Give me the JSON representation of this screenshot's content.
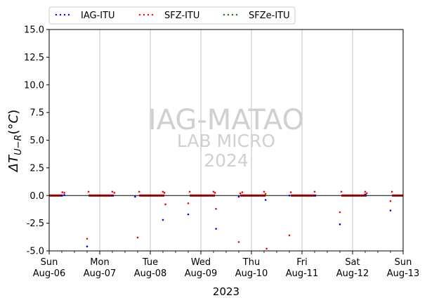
{
  "chart_data": {
    "type": "scatter",
    "xlabel": "2023",
    "ylabel": "ΔT_{U-R}(°C)",
    "ylim": [
      -5.0,
      15.0
    ],
    "yticks": [
      "-5.0",
      "-2.5",
      "0.0",
      "2.5",
      "5.0",
      "7.5",
      "10.0",
      "12.5",
      "15.0"
    ],
    "ytick_values": [
      -5.0,
      -2.5,
      0.0,
      2.5,
      5.0,
      7.5,
      10.0,
      12.5,
      15.0
    ],
    "xlim": [
      0,
      7
    ],
    "xtick_labels": [
      {
        "day": "Sun",
        "date": "Aug-06"
      },
      {
        "day": "Mon",
        "date": "Aug-07"
      },
      {
        "day": "Tue",
        "date": "Aug-08"
      },
      {
        "day": "Wed",
        "date": "Aug-09"
      },
      {
        "day": "Thu",
        "date": "Aug-10"
      },
      {
        "day": "Fri",
        "date": "Aug-11"
      },
      {
        "day": "Sat",
        "date": "Aug-12"
      },
      {
        "day": "Sun",
        "date": "Aug-13"
      }
    ],
    "grid": "vertical at day boundaries",
    "legend_placement": "top, outside plot",
    "watermark": [
      "IAG-MATAO",
      "LAB MICRO",
      "2024"
    ],
    "series": [
      {
        "name": "IAG-ITU",
        "color": "#0000ff",
        "points": [
          [
            0.25,
            0.0
          ],
          [
            0.3,
            0.05
          ],
          [
            0.75,
            -4.6
          ],
          [
            1.25,
            0.0
          ],
          [
            1.7,
            -0.1
          ],
          [
            2.25,
            -2.2
          ],
          [
            2.75,
            -1.7
          ],
          [
            3.3,
            -3.0
          ],
          [
            3.75,
            -0.1
          ],
          [
            4.28,
            -0.4
          ],
          [
            4.75,
            0.0
          ],
          [
            5.25,
            0.0
          ],
          [
            5.75,
            -2.6
          ],
          [
            6.25,
            0.1
          ],
          [
            6.75,
            -1.35
          ]
        ]
      },
      {
        "name": "SFZ-ITU",
        "color": "#ff0000",
        "points": [
          [
            0.26,
            0.3
          ],
          [
            0.3,
            0.25
          ],
          [
            0.75,
            -3.9
          ],
          [
            0.78,
            0.35
          ],
          [
            1.25,
            0.35
          ],
          [
            1.29,
            0.25
          ],
          [
            1.75,
            -3.8
          ],
          [
            1.78,
            0.35
          ],
          [
            2.25,
            0.35
          ],
          [
            2.28,
            0.25
          ],
          [
            2.3,
            -0.8
          ],
          [
            2.75,
            -0.7
          ],
          [
            2.78,
            0.35
          ],
          [
            3.25,
            0.35
          ],
          [
            3.28,
            0.25
          ],
          [
            3.3,
            -1.2
          ],
          [
            3.75,
            -4.2
          ],
          [
            3.78,
            0.2
          ],
          [
            3.82,
            0.3
          ],
          [
            4.25,
            0.35
          ],
          [
            4.28,
            0.15
          ],
          [
            4.3,
            -4.8
          ],
          [
            4.75,
            -3.6
          ],
          [
            4.78,
            0.3
          ],
          [
            5.25,
            0.35
          ],
          [
            5.75,
            -1.5
          ],
          [
            5.78,
            0.35
          ],
          [
            6.25,
            0.35
          ],
          [
            6.28,
            0.2
          ],
          [
            6.75,
            -0.5
          ],
          [
            6.78,
            0.35
          ]
        ]
      },
      {
        "name": "SFZe-ITU",
        "color": "#008000",
        "points": []
      }
    ],
    "baseline_segments": [
      [
        0.0,
        0.27
      ],
      [
        0.78,
        1.28
      ],
      [
        1.78,
        2.28
      ],
      [
        2.78,
        3.28
      ],
      [
        3.78,
        4.28
      ],
      [
        4.78,
        5.28
      ],
      [
        5.78,
        6.28
      ],
      [
        6.78,
        7.0
      ]
    ]
  }
}
